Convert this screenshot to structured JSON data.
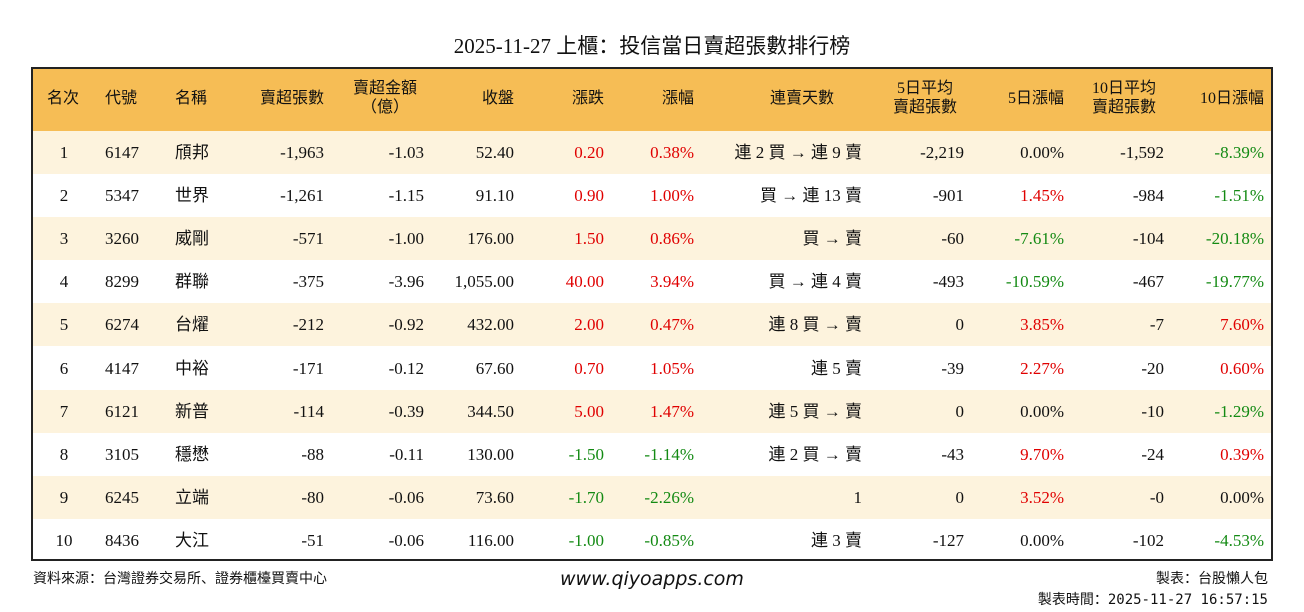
{
  "title": "2025-11-27 上櫃：投信當日賣超張數排行榜",
  "table": {
    "header": [
      [
        "名次"
      ],
      [
        "代號"
      ],
      [
        "名稱"
      ],
      [
        "賣超張數"
      ],
      [
        "賣超金額",
        "（億）"
      ],
      [
        "收盤"
      ],
      [
        "漲跌"
      ],
      [
        "漲幅"
      ],
      [
        "連賣天數"
      ],
      [
        "5日平均",
        "賣超張數"
      ],
      [
        "5日漲幅"
      ],
      [
        "10日平均",
        "賣超張數"
      ],
      [
        "10日漲幅"
      ]
    ],
    "rows": [
      [
        "1",
        "6147",
        "頎邦",
        "-1,963",
        "-1.03",
        "52.40",
        "0.20",
        "0.38%",
        "連 2 買 → 連 9 賣",
        "-2,219",
        "0.00%",
        "-1,592",
        "-8.39%"
      ],
      [
        "2",
        "5347",
        "世界",
        "-1,261",
        "-1.15",
        "91.10",
        "0.90",
        "1.00%",
        "買 → 連 13 賣",
        "-901",
        "1.45%",
        "-984",
        "-1.51%"
      ],
      [
        "3",
        "3260",
        "威剛",
        "-571",
        "-1.00",
        "176.00",
        "1.50",
        "0.86%",
        "買 → 賣",
        "-60",
        "-7.61%",
        "-104",
        "-20.18%"
      ],
      [
        "4",
        "8299",
        "群聯",
        "-375",
        "-3.96",
        "1,055.00",
        "40.00",
        "3.94%",
        "買 → 連 4 賣",
        "-493",
        "-10.59%",
        "-467",
        "-19.77%"
      ],
      [
        "5",
        "6274",
        "台燿",
        "-212",
        "-0.92",
        "432.00",
        "2.00",
        "0.47%",
        "連 8 買 → 賣",
        "0",
        "3.85%",
        "-7",
        "7.60%"
      ],
      [
        "6",
        "4147",
        "中裕",
        "-171",
        "-0.12",
        "67.60",
        "0.70",
        "1.05%",
        "連 5 賣",
        "-39",
        "2.27%",
        "-20",
        "0.60%"
      ],
      [
        "7",
        "6121",
        "新普",
        "-114",
        "-0.39",
        "344.50",
        "5.00",
        "1.47%",
        "連 5 買 → 賣",
        "0",
        "0.00%",
        "-10",
        "-1.29%"
      ],
      [
        "8",
        "3105",
        "穩懋",
        "-88",
        "-0.11",
        "130.00",
        "-1.50",
        "-1.14%",
        "連 2 買 → 賣",
        "-43",
        "9.70%",
        "-24",
        "0.39%"
      ],
      [
        "9",
        "6245",
        "立端",
        "-80",
        "-0.06",
        "73.60",
        "-1.70",
        "-2.26%",
        "1",
        "0",
        "3.52%",
        "-0",
        "0.00%"
      ],
      [
        "10",
        "8436",
        "大江",
        "-51",
        "-0.06",
        "116.00",
        "-1.00",
        "-0.85%",
        "連 3 賣",
        "-127",
        "0.00%",
        "-102",
        "-4.53%"
      ]
    ]
  },
  "footer": {
    "source": "資料來源：台灣證券交易所、證券櫃檯買賣中心",
    "website": "www.qiyoapps.com",
    "author": "製表：台股懶人包",
    "time": "製表時間：2025-11-27 16:57:15"
  }
}
